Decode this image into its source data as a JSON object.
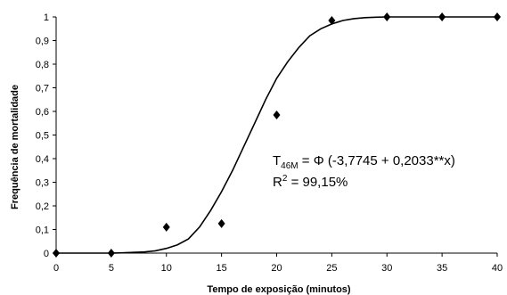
{
  "chart_data": {
    "type": "scatter",
    "title": "",
    "xlabel": "Tempo de exposição (minutos)",
    "ylabel": "Frequência de mortalidade",
    "xlim": [
      0,
      40
    ],
    "ylim": [
      0,
      1
    ],
    "x_ticks": [
      "0",
      "5",
      "10",
      "15",
      "20",
      "25",
      "30",
      "35",
      "40"
    ],
    "y_ticks": [
      "0",
      "0,1",
      "0,2",
      "0,3",
      "0,4",
      "0,5",
      "0,6",
      "0,7",
      "0,8",
      "0,9",
      "1"
    ],
    "grid": false,
    "legend": "none",
    "series": [
      {
        "kind": "observed",
        "marker": "diamond",
        "x": [
          0,
          5,
          10,
          15,
          20,
          25,
          30,
          35,
          40
        ],
        "y": [
          0,
          0,
          0.11,
          0.125,
          0.585,
          0.985,
          1,
          1,
          1
        ]
      },
      {
        "kind": "fitted-probit",
        "x": [
          0,
          5,
          6,
          8,
          9,
          10,
          11,
          12,
          13,
          14,
          15,
          16,
          17,
          18,
          19,
          20,
          21,
          22,
          23,
          24,
          25,
          26,
          27,
          28,
          29,
          30,
          31,
          32,
          33,
          34,
          35,
          36,
          37,
          38,
          39,
          40
        ],
        "y": [
          0,
          0,
          0.001,
          0.005,
          0.01,
          0.02,
          0.035,
          0.06,
          0.11,
          0.18,
          0.26,
          0.35,
          0.45,
          0.55,
          0.65,
          0.74,
          0.81,
          0.87,
          0.92,
          0.95,
          0.97,
          0.985,
          0.993,
          0.997,
          0.999,
          1,
          1,
          1,
          1,
          1,
          1,
          1,
          1,
          1,
          1,
          1
        ]
      }
    ],
    "annotation": {
      "line1_prefix": "T",
      "line1_subscript": "46M",
      "line1_rest": " = Φ (-3,7745 + 0,2033**x)",
      "line2_prefix": "R",
      "line2_superscript": "2",
      "line2_rest": " = 99,15%"
    },
    "colors": {
      "axis": "#000000",
      "marker": "#000000",
      "curve": "#000000"
    }
  }
}
